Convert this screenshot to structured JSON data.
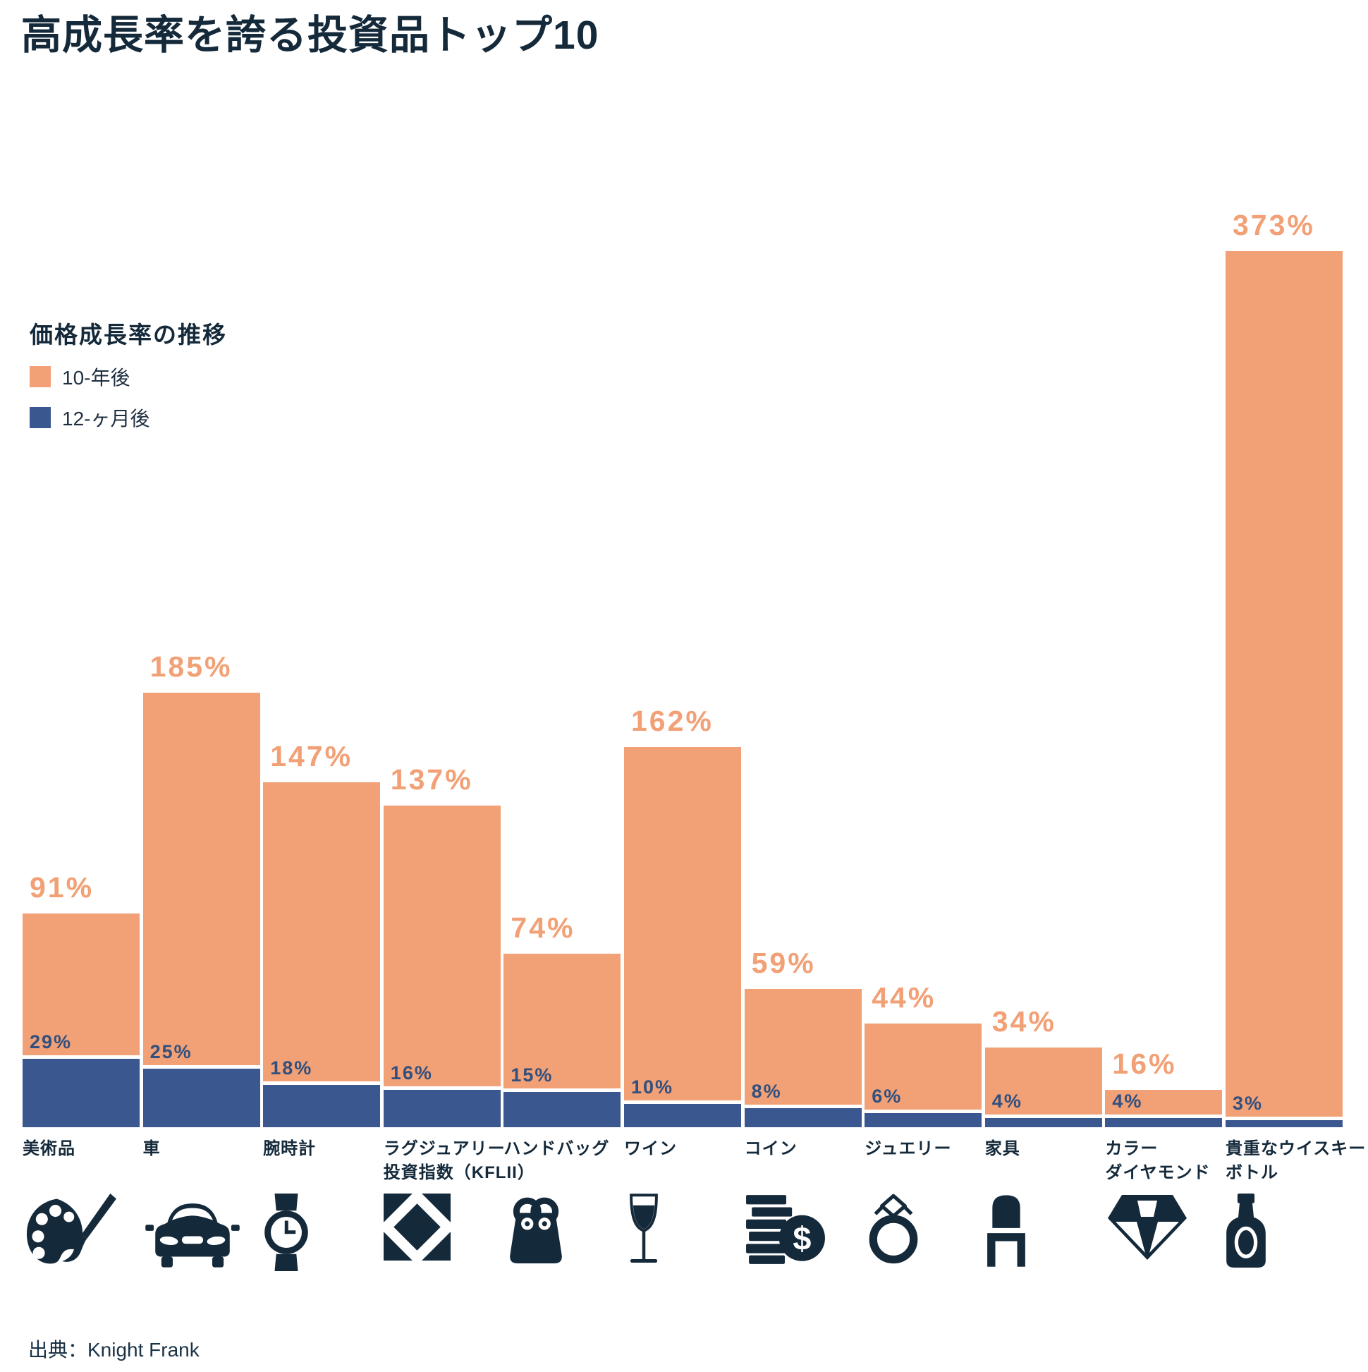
{
  "title": "高成長率を誇る投資品トップ10",
  "legend": {
    "title": "価格成長率の推移",
    "items": [
      {
        "label": "10-年後",
        "color": "#F2A075"
      },
      {
        "label": "12-ヶ月後",
        "color": "#3A5790"
      }
    ]
  },
  "source": "出典：Knight Frank",
  "colors": {
    "accent_orange": "#F2A075",
    "accent_blue": "#3A5790",
    "navy_text": "#14293A",
    "blue_value_label": "#31507F"
  },
  "chart_data": {
    "type": "bar",
    "title": "高成長率を誇る投資品トップ10",
    "subtitle": "価格成長率の推移",
    "unit": "%",
    "grid": false,
    "axes_hidden": true,
    "value_labels": true,
    "legend_position": "upper-left",
    "ylim": [
      0,
      373
    ],
    "categories": [
      {
        "id": "art",
        "label": "美術品",
        "lines": [
          "美術品"
        ],
        "icon": "palette-brush-icon"
      },
      {
        "id": "cars",
        "label": "車",
        "lines": [
          "車"
        ],
        "icon": "car-icon"
      },
      {
        "id": "watches",
        "label": "腕時計",
        "lines": [
          "腕時計"
        ],
        "icon": "wristwatch-icon"
      },
      {
        "id": "kflii",
        "label": "ラグジュアリー投資指数（KFLII）",
        "lines": [
          "ラグジュアリー",
          "投資指数（KFLII）"
        ],
        "icon": "knight-frank-index-icon"
      },
      {
        "id": "handbags",
        "label": "ハンドバッグ",
        "lines": [
          "ハンドバッグ"
        ],
        "icon": "handbag-icon"
      },
      {
        "id": "wine",
        "label": "ワイン",
        "lines": [
          "ワイン"
        ],
        "icon": "wine-glass-icon"
      },
      {
        "id": "coins",
        "label": "コイン",
        "lines": [
          "コイン"
        ],
        "icon": "coins-icon"
      },
      {
        "id": "jewellery",
        "label": "ジュエリー",
        "lines": [
          "ジュエリー"
        ],
        "icon": "ring-icon"
      },
      {
        "id": "furniture",
        "label": "家具",
        "lines": [
          "家具"
        ],
        "icon": "chair-icon"
      },
      {
        "id": "diamonds",
        "label": "カラーダイヤモンド",
        "lines": [
          "カラー",
          "ダイヤモンド"
        ],
        "icon": "diamond-icon"
      },
      {
        "id": "whisky",
        "label": "貴重なウイスキーボトル",
        "lines": [
          "貴重なウイスキー",
          "ボトル"
        ],
        "icon": "whisky-bottle-icon"
      }
    ],
    "series": [
      {
        "name": "10-年後",
        "color": "#F2A075",
        "values": [
          91,
          185,
          147,
          137,
          74,
          162,
          59,
          44,
          34,
          16,
          373
        ]
      },
      {
        "name": "12-ヶ月後",
        "color": "#3A5790",
        "values": [
          29,
          25,
          18,
          16,
          15,
          10,
          8,
          6,
          4,
          4,
          3
        ]
      }
    ]
  }
}
